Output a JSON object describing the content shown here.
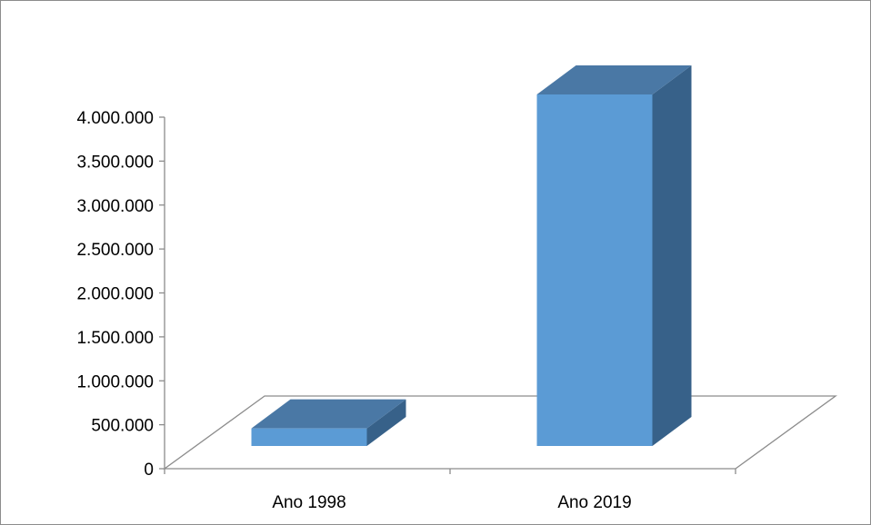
{
  "chart_data": {
    "type": "bar",
    "style": "3d-column",
    "categories": [
      "Ano 1998",
      "Ano 2019"
    ],
    "values": [
      200000,
      4000000
    ],
    "ylim": [
      0,
      4000000
    ],
    "yticks": [
      0,
      500000,
      1000000,
      1500000,
      2000000,
      2500000,
      3000000,
      3500000,
      4000000
    ],
    "ytick_labels": [
      "0",
      "500.000",
      "1.000.000",
      "1.500.000",
      "2.000.000",
      "2.500.000",
      "3.000.000",
      "3.500.000",
      "4.000.000"
    ],
    "grid": false,
    "legend": "none",
    "colors": {
      "front": "#5b9bd5",
      "top": "#4a78a5",
      "side": "#376189",
      "axis": "#8c8c8c"
    }
  }
}
